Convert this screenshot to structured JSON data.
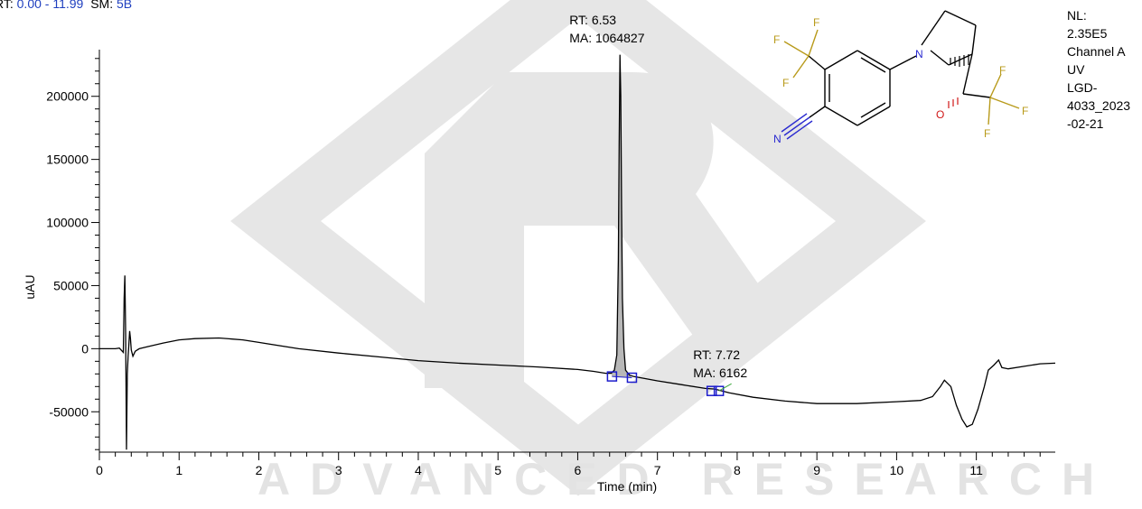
{
  "header": {
    "rt_prefix": "RT:",
    "rt_range": "0.00 - 11.99",
    "sm_prefix": "SM:",
    "sm_value": "5B"
  },
  "info_panel": {
    "lines": [
      "NL:",
      "2.35E5",
      "Channel A",
      "UV",
      "LGD-",
      "4033_2023",
      "-02-21"
    ]
  },
  "watermark": {
    "text": "ADVANCED RESEARCH"
  },
  "molecule": {
    "atoms": {
      "n_ring": "N",
      "o": "O",
      "n_nitrile": "N",
      "f": "F"
    }
  },
  "colors": {
    "trace": "#000000",
    "peak_fill": "#b8b8b8",
    "marker": "#1c1ccc",
    "header_value": "#1f3fbf",
    "bond_f": "#b89a1a",
    "bond_n": "#2a2ad0",
    "bond_o": "#d01818",
    "watermark": "#e3e3e3"
  },
  "chart_data": {
    "type": "line",
    "xlabel": "Time (min)",
    "ylabel": "uAU",
    "xlim": [
      0,
      11.99
    ],
    "ylim": [
      -82000,
      237000
    ],
    "x_ticks": [
      0,
      1,
      2,
      3,
      4,
      5,
      6,
      7,
      8,
      9,
      10,
      11
    ],
    "y_ticks": [
      -50000,
      0,
      50000,
      100000,
      150000,
      200000
    ],
    "series": [
      {
        "points": [
          [
            0.0,
            0
          ],
          [
            0.1,
            0
          ],
          [
            0.2,
            0
          ],
          [
            0.25,
            500
          ],
          [
            0.3,
            -3000
          ],
          [
            0.31,
            40000
          ],
          [
            0.32,
            58000
          ],
          [
            0.33,
            10000
          ],
          [
            0.34,
            -80000
          ],
          [
            0.35,
            -20000
          ],
          [
            0.36,
            -6000
          ],
          [
            0.37,
            3000
          ],
          [
            0.38,
            14000
          ],
          [
            0.39,
            8000
          ],
          [
            0.4,
            -1000
          ],
          [
            0.42,
            -6000
          ],
          [
            0.45,
            -2000
          ],
          [
            0.5,
            0
          ],
          [
            0.6,
            1500
          ],
          [
            0.8,
            4500
          ],
          [
            1.0,
            7000
          ],
          [
            1.2,
            8000
          ],
          [
            1.5,
            8500
          ],
          [
            1.8,
            7000
          ],
          [
            2.0,
            5000
          ],
          [
            2.5,
            0
          ],
          [
            3.0,
            -3500
          ],
          [
            3.5,
            -6500
          ],
          [
            4.0,
            -9500
          ],
          [
            4.5,
            -11500
          ],
          [
            5.0,
            -13000
          ],
          [
            5.5,
            -14500
          ],
          [
            6.0,
            -16500
          ],
          [
            6.2,
            -18000
          ],
          [
            6.35,
            -19500
          ],
          [
            6.42,
            -19500
          ],
          [
            6.46,
            -17000
          ],
          [
            6.49,
            -5000
          ],
          [
            6.51,
            70000
          ],
          [
            6.52,
            160000
          ],
          [
            6.53,
            233000
          ],
          [
            6.54,
            200000
          ],
          [
            6.55,
            110000
          ],
          [
            6.56,
            40000
          ],
          [
            6.58,
            0
          ],
          [
            6.6,
            -17000
          ],
          [
            6.65,
            -21000
          ],
          [
            6.7,
            -22000
          ],
          [
            7.0,
            -25500
          ],
          [
            7.3,
            -28500
          ],
          [
            7.6,
            -31500
          ],
          [
            7.72,
            -32000
          ],
          [
            7.9,
            -35000
          ],
          [
            8.2,
            -38500
          ],
          [
            8.6,
            -41500
          ],
          [
            9.0,
            -43500
          ],
          [
            9.5,
            -43500
          ],
          [
            10.0,
            -42000
          ],
          [
            10.3,
            -41000
          ],
          [
            10.45,
            -38000
          ],
          [
            10.55,
            -30000
          ],
          [
            10.6,
            -25000
          ],
          [
            10.68,
            -30000
          ],
          [
            10.75,
            -45000
          ],
          [
            10.82,
            -56000
          ],
          [
            10.88,
            -62000
          ],
          [
            10.95,
            -60000
          ],
          [
            11.02,
            -48000
          ],
          [
            11.1,
            -30000
          ],
          [
            11.15,
            -17000
          ],
          [
            11.22,
            -13000
          ],
          [
            11.28,
            -9000
          ],
          [
            11.32,
            -15000
          ],
          [
            11.4,
            -16000
          ],
          [
            11.6,
            -14000
          ],
          [
            11.8,
            -12000
          ],
          [
            11.99,
            -11500
          ]
        ]
      }
    ],
    "peak_area": {
      "x_start": 6.42,
      "x_end": 6.68
    },
    "baseline_markers": [
      {
        "x": 6.43,
        "y": -22000
      },
      {
        "x": 6.68,
        "y": -23000
      },
      {
        "x": 7.68,
        "y": -33500
      },
      {
        "x": 7.77,
        "y": -33500
      }
    ],
    "peaks": [
      {
        "rt_label": "RT: 6.53",
        "ma_label": "MA: 1064827",
        "x": 6.53,
        "y": 233000
      },
      {
        "rt_label": "RT: 7.72",
        "ma_label": "MA: 6162",
        "x": 7.72,
        "y": -32000
      }
    ]
  }
}
